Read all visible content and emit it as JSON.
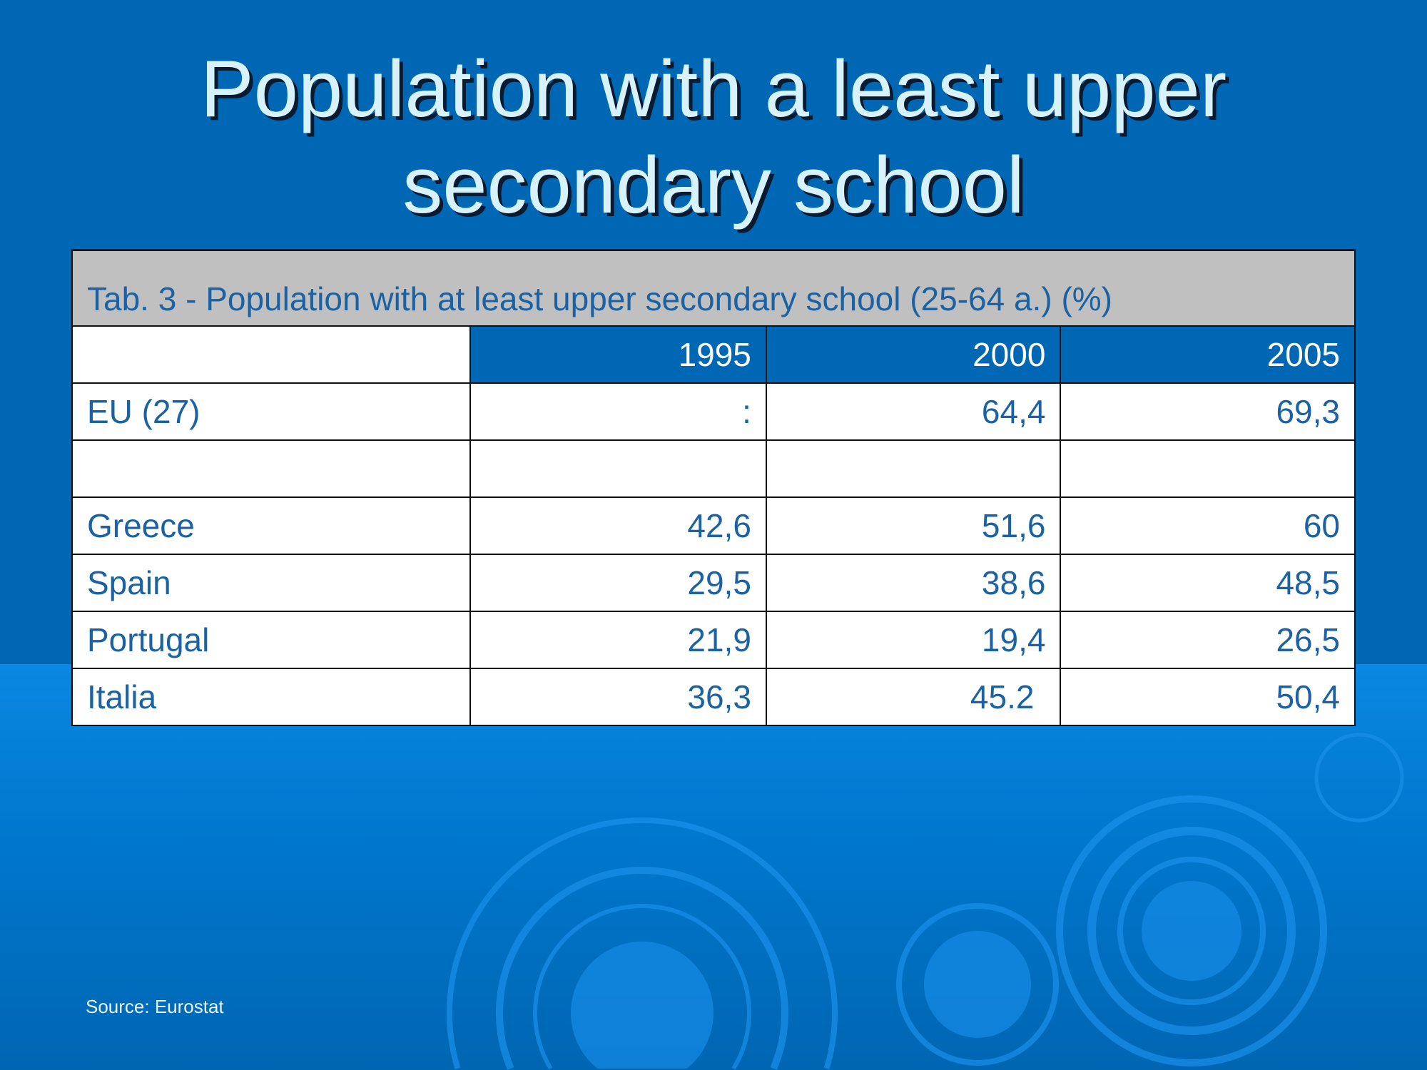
{
  "title_lines": [
    "Population with a least upper",
    "secondary school"
  ],
  "table": {
    "caption": "Tab. 3 - Population with at least upper secondary school (25-64 a.) (%)",
    "headers": [
      "",
      "1995",
      "2000",
      "2005"
    ],
    "rows": [
      {
        "label": "EU (27)",
        "values": [
          ":",
          "64,4",
          "69,3"
        ]
      },
      {
        "label": "",
        "values": [
          "",
          "",
          ""
        ]
      },
      {
        "label": "Greece",
        "values": [
          "42,6",
          "51,6",
          "60"
        ]
      },
      {
        "label": "Spain",
        "values": [
          "29,5",
          "38,6",
          "48,5"
        ]
      },
      {
        "label": "Portugal",
        "values": [
          "21,9",
          "19,4",
          "26,5"
        ]
      },
      {
        "label": "Italia",
        "values": [
          "36,3",
          "45.2",
          "50,4"
        ]
      }
    ]
  },
  "source": "Source: Eurostat",
  "colors": {
    "background": "#0067b4",
    "header": "#0067b4",
    "text": "#1a62a3",
    "title": "#d8f2fb"
  }
}
